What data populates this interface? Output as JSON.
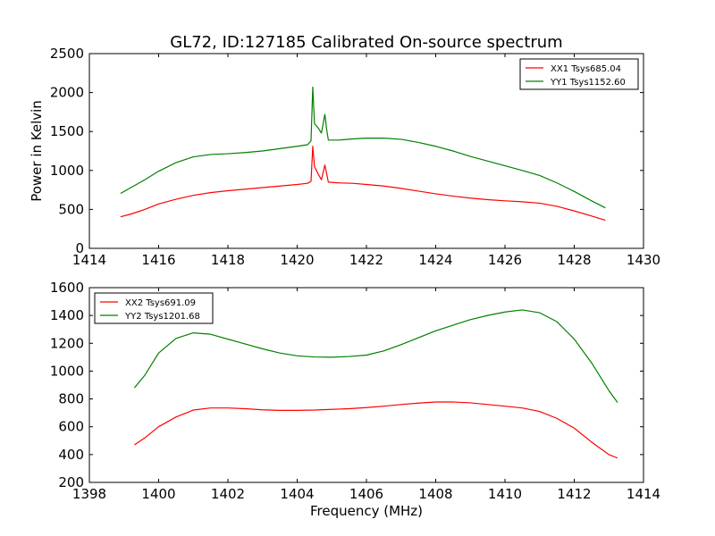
{
  "figure": {
    "title": "GL72, ID:127185 Calibrated On-source spectrum",
    "ylabel": "Power in Kelvin",
    "xlabel": "Frequency (MHz)"
  },
  "chart_data": [
    {
      "type": "line",
      "xlim": [
        1414,
        1430
      ],
      "ylim": [
        0,
        2500
      ],
      "xticks": [
        1414,
        1416,
        1418,
        1420,
        1422,
        1424,
        1426,
        1428,
        1430
      ],
      "yticks": [
        0,
        500,
        1000,
        1500,
        2000,
        2500
      ],
      "legend_position": "top-right",
      "grid": false,
      "series": [
        {
          "name": "XX1 Tsys685.04",
          "color": "#ff0000",
          "points": [
            [
              1414.9,
              405
            ],
            [
              1415.2,
              440
            ],
            [
              1415.6,
              500
            ],
            [
              1416.0,
              570
            ],
            [
              1416.5,
              630
            ],
            [
              1417.0,
              680
            ],
            [
              1417.5,
              715
            ],
            [
              1418.0,
              740
            ],
            [
              1418.5,
              760
            ],
            [
              1419.0,
              780
            ],
            [
              1419.5,
              800
            ],
            [
              1420.0,
              820
            ],
            [
              1420.3,
              835
            ],
            [
              1420.4,
              860
            ],
            [
              1420.45,
              1310
            ],
            [
              1420.5,
              1050
            ],
            [
              1420.6,
              960
            ],
            [
              1420.7,
              880
            ],
            [
              1420.8,
              1070
            ],
            [
              1420.85,
              960
            ],
            [
              1420.9,
              850
            ],
            [
              1421.2,
              840
            ],
            [
              1421.6,
              835
            ],
            [
              1422.0,
              820
            ],
            [
              1422.5,
              800
            ],
            [
              1423.0,
              770
            ],
            [
              1423.5,
              735
            ],
            [
              1424.0,
              700
            ],
            [
              1424.5,
              670
            ],
            [
              1425.0,
              645
            ],
            [
              1425.5,
              625
            ],
            [
              1426.0,
              610
            ],
            [
              1426.5,
              598
            ],
            [
              1427.0,
              580
            ],
            [
              1427.5,
              540
            ],
            [
              1428.0,
              480
            ],
            [
              1428.5,
              415
            ],
            [
              1428.9,
              360
            ]
          ]
        },
        {
          "name": "YY1 Tsys1152.60",
          "color": "#008000",
          "points": [
            [
              1414.9,
              705
            ],
            [
              1415.2,
              780
            ],
            [
              1415.6,
              880
            ],
            [
              1416.0,
              990
            ],
            [
              1416.5,
              1100
            ],
            [
              1417.0,
              1175
            ],
            [
              1417.5,
              1205
            ],
            [
              1418.0,
              1215
            ],
            [
              1418.5,
              1230
            ],
            [
              1419.0,
              1250
            ],
            [
              1419.5,
              1280
            ],
            [
              1420.0,
              1310
            ],
            [
              1420.3,
              1330
            ],
            [
              1420.4,
              1380
            ],
            [
              1420.45,
              2070
            ],
            [
              1420.5,
              1600
            ],
            [
              1420.6,
              1550
            ],
            [
              1420.7,
              1480
            ],
            [
              1420.8,
              1720
            ],
            [
              1420.85,
              1530
            ],
            [
              1420.9,
              1390
            ],
            [
              1421.2,
              1390
            ],
            [
              1421.6,
              1405
            ],
            [
              1422.0,
              1415
            ],
            [
              1422.5,
              1415
            ],
            [
              1423.0,
              1400
            ],
            [
              1423.5,
              1360
            ],
            [
              1424.0,
              1310
            ],
            [
              1424.5,
              1250
            ],
            [
              1425.0,
              1180
            ],
            [
              1425.5,
              1120
            ],
            [
              1426.0,
              1060
            ],
            [
              1426.5,
              1000
            ],
            [
              1427.0,
              935
            ],
            [
              1427.5,
              840
            ],
            [
              1428.0,
              730
            ],
            [
              1428.5,
              610
            ],
            [
              1428.9,
              520
            ]
          ]
        }
      ]
    },
    {
      "type": "line",
      "xlim": [
        1398,
        1414
      ],
      "ylim": [
        200,
        1600
      ],
      "xticks": [
        1398,
        1400,
        1402,
        1404,
        1406,
        1408,
        1410,
        1412,
        1414
      ],
      "yticks": [
        200,
        400,
        600,
        800,
        1000,
        1200,
        1400,
        1600
      ],
      "legend_position": "top-left",
      "grid": false,
      "series": [
        {
          "name": "XX2 Tsys691.09",
          "color": "#ff0000",
          "points": [
            [
              1399.3,
              470
            ],
            [
              1399.6,
              520
            ],
            [
              1400.0,
              600
            ],
            [
              1400.5,
              670
            ],
            [
              1401.0,
              720
            ],
            [
              1401.5,
              735
            ],
            [
              1402.0,
              735
            ],
            [
              1402.5,
              730
            ],
            [
              1403.0,
              722
            ],
            [
              1403.5,
              718
            ],
            [
              1404.0,
              718
            ],
            [
              1404.5,
              720
            ],
            [
              1405.0,
              725
            ],
            [
              1405.5,
              730
            ],
            [
              1406.0,
              738
            ],
            [
              1406.5,
              748
            ],
            [
              1407.0,
              760
            ],
            [
              1407.5,
              770
            ],
            [
              1408.0,
              778
            ],
            [
              1408.5,
              778
            ],
            [
              1409.0,
              772
            ],
            [
              1409.5,
              760
            ],
            [
              1410.0,
              748
            ],
            [
              1410.5,
              735
            ],
            [
              1411.0,
              710
            ],
            [
              1411.5,
              660
            ],
            [
              1412.0,
              590
            ],
            [
              1412.5,
              490
            ],
            [
              1413.0,
              400
            ],
            [
              1413.25,
              375
            ]
          ]
        },
        {
          "name": "YY2 Tsys1201.68",
          "color": "#008000",
          "points": [
            [
              1399.3,
              880
            ],
            [
              1399.6,
              970
            ],
            [
              1400.0,
              1130
            ],
            [
              1400.5,
              1235
            ],
            [
              1401.0,
              1275
            ],
            [
              1401.5,
              1265
            ],
            [
              1402.0,
              1230
            ],
            [
              1402.5,
              1195
            ],
            [
              1403.0,
              1160
            ],
            [
              1403.5,
              1130
            ],
            [
              1404.0,
              1110
            ],
            [
              1404.5,
              1102
            ],
            [
              1405.0,
              1100
            ],
            [
              1405.5,
              1105
            ],
            [
              1406.0,
              1115
            ],
            [
              1406.5,
              1145
            ],
            [
              1407.0,
              1190
            ],
            [
              1407.5,
              1240
            ],
            [
              1408.0,
              1290
            ],
            [
              1408.5,
              1330
            ],
            [
              1409.0,
              1370
            ],
            [
              1409.5,
              1400
            ],
            [
              1410.0,
              1425
            ],
            [
              1410.5,
              1440
            ],
            [
              1411.0,
              1420
            ],
            [
              1411.5,
              1355
            ],
            [
              1412.0,
              1230
            ],
            [
              1412.5,
              1060
            ],
            [
              1413.0,
              860
            ],
            [
              1413.25,
              775
            ]
          ]
        }
      ]
    }
  ]
}
